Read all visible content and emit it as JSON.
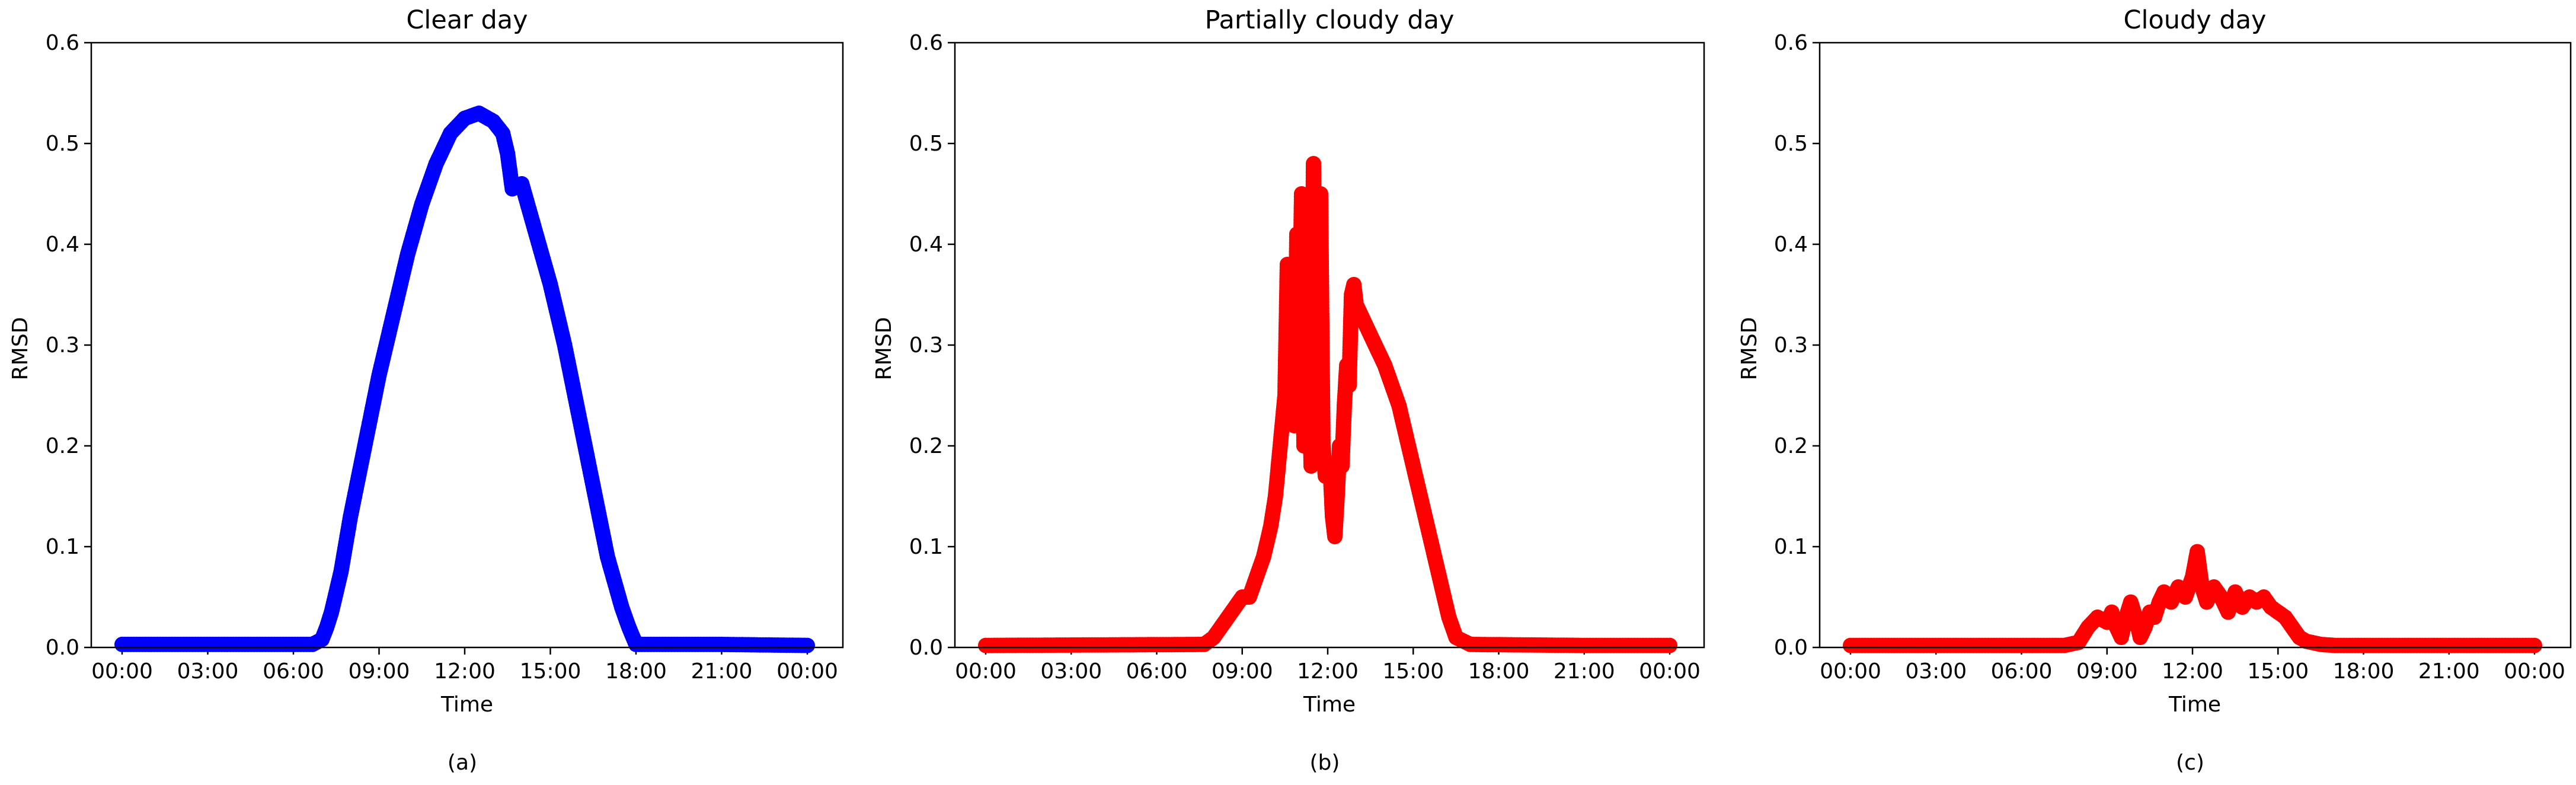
{
  "chart_data": [
    {
      "type": "scatter",
      "title": "Clear day",
      "caption": "(a)",
      "xlabel": "Time",
      "ylabel": "RMSD",
      "xlim": [
        "00:00",
        "24:00"
      ],
      "ylim": [
        0,
        0.6
      ],
      "x_tick_labels": [
        "00:00",
        "03:00",
        "06:00",
        "09:00",
        "12:00",
        "15:00",
        "18:00",
        "21:00",
        "00:00"
      ],
      "y_tick_labels": [
        "0.0",
        "0.1",
        "0.2",
        "0.3",
        "0.4",
        "0.5",
        "0.6"
      ],
      "grid": false,
      "color": "#0000ff",
      "series": [
        {
          "x": [
            "00:00",
            "06:40",
            "07:00",
            "07:10",
            "07:20",
            "07:40",
            "08:00",
            "08:30",
            "09:00",
            "09:30",
            "10:00",
            "10:30",
            "11:00",
            "11:30",
            "12:00",
            "12:30",
            "13:00",
            "13:20",
            "13:30",
            "13:40",
            "14:00",
            "14:30",
            "15:00",
            "15:30",
            "16:00",
            "16:30",
            "17:00",
            "17:30",
            "17:45",
            "18:00",
            "21:00",
            "24:00"
          ],
          "y": [
            0.003,
            0.003,
            0.008,
            0.02,
            0.035,
            0.075,
            0.13,
            0.2,
            0.27,
            0.33,
            0.39,
            0.44,
            0.48,
            0.51,
            0.525,
            0.53,
            0.522,
            0.51,
            0.49,
            0.455,
            0.46,
            0.41,
            0.36,
            0.3,
            0.23,
            0.16,
            0.09,
            0.04,
            0.02,
            0.003,
            0.003,
            0.002
          ]
        }
      ]
    },
    {
      "type": "scatter",
      "title": "Partially cloudy day",
      "caption": "(b)",
      "xlabel": "Time",
      "ylabel": "RMSD",
      "xlim": [
        "00:00",
        "24:00"
      ],
      "ylim": [
        0,
        0.6
      ],
      "x_tick_labels": [
        "00:00",
        "03:00",
        "06:00",
        "09:00",
        "12:00",
        "15:00",
        "18:00",
        "21:00",
        "00:00"
      ],
      "y_tick_labels": [
        "0.0",
        "0.1",
        "0.2",
        "0.3",
        "0.4",
        "0.5",
        "0.6"
      ],
      "grid": false,
      "color": "#ff0000",
      "series": [
        {
          "x": [
            "00:00",
            "07:40",
            "08:00",
            "08:30",
            "09:00",
            "09:15",
            "09:30",
            "09:45",
            "10:00",
            "10:10",
            "10:20",
            "10:30",
            "10:35",
            "10:40",
            "10:45",
            "10:50",
            "10:55",
            "11:00",
            "11:05",
            "11:10",
            "11:15",
            "11:20",
            "11:25",
            "11:30",
            "11:35",
            "11:40",
            "11:45",
            "11:50",
            "11:55",
            "12:00",
            "12:05",
            "12:10",
            "12:15",
            "12:20",
            "12:25",
            "12:30",
            "12:35",
            "12:40",
            "12:45",
            "12:50",
            "12:55",
            "13:00",
            "13:20",
            "13:40",
            "14:00",
            "14:30",
            "15:00",
            "15:30",
            "16:00",
            "16:15",
            "16:30",
            "17:00",
            "21:00",
            "24:00"
          ],
          "y": [
            0.002,
            0.003,
            0.01,
            0.03,
            0.05,
            0.05,
            0.07,
            0.09,
            0.12,
            0.15,
            0.2,
            0.25,
            0.38,
            0.28,
            0.35,
            0.22,
            0.41,
            0.3,
            0.45,
            0.2,
            0.44,
            0.32,
            0.18,
            0.48,
            0.25,
            0.44,
            0.45,
            0.2,
            0.17,
            0.17,
            0.18,
            0.13,
            0.11,
            0.15,
            0.2,
            0.18,
            0.24,
            0.28,
            0.26,
            0.35,
            0.36,
            0.34,
            0.32,
            0.3,
            0.28,
            0.24,
            0.18,
            0.12,
            0.06,
            0.03,
            0.01,
            0.003,
            0.002,
            0.002
          ]
        }
      ]
    },
    {
      "type": "scatter",
      "title": "Cloudy day",
      "caption": "(c)",
      "xlabel": "Time",
      "ylabel": "RMSD",
      "xlim": [
        "00:00",
        "24:00"
      ],
      "ylim": [
        0,
        0.6
      ],
      "x_tick_labels": [
        "00:00",
        "03:00",
        "06:00",
        "09:00",
        "12:00",
        "15:00",
        "18:00",
        "21:00",
        "00:00"
      ],
      "y_tick_labels": [
        "0.0",
        "0.1",
        "0.2",
        "0.3",
        "0.4",
        "0.5",
        "0.6"
      ],
      "grid": false,
      "color": "#ff0000",
      "series": [
        {
          "x": [
            "00:00",
            "07:30",
            "08:00",
            "08:20",
            "08:40",
            "09:00",
            "09:10",
            "09:20",
            "09:30",
            "09:40",
            "09:50",
            "10:00",
            "10:10",
            "10:20",
            "10:30",
            "10:40",
            "10:50",
            "11:00",
            "11:15",
            "11:30",
            "11:45",
            "12:00",
            "12:10",
            "12:20",
            "12:30",
            "12:45",
            "13:00",
            "13:15",
            "13:30",
            "13:45",
            "14:00",
            "14:15",
            "14:30",
            "14:45",
            "15:00",
            "15:15",
            "15:30",
            "15:45",
            "16:00",
            "16:30",
            "17:00",
            "21:00",
            "24:00"
          ],
          "y": [
            0.002,
            0.002,
            0.005,
            0.02,
            0.03,
            0.025,
            0.035,
            0.02,
            0.01,
            0.03,
            0.045,
            0.03,
            0.01,
            0.02,
            0.035,
            0.03,
            0.045,
            0.055,
            0.045,
            0.06,
            0.05,
            0.07,
            0.095,
            0.06,
            0.045,
            0.06,
            0.05,
            0.035,
            0.055,
            0.04,
            0.05,
            0.045,
            0.05,
            0.04,
            0.035,
            0.03,
            0.02,
            0.01,
            0.006,
            0.003,
            0.002,
            0.002,
            0.002
          ]
        }
      ]
    }
  ]
}
